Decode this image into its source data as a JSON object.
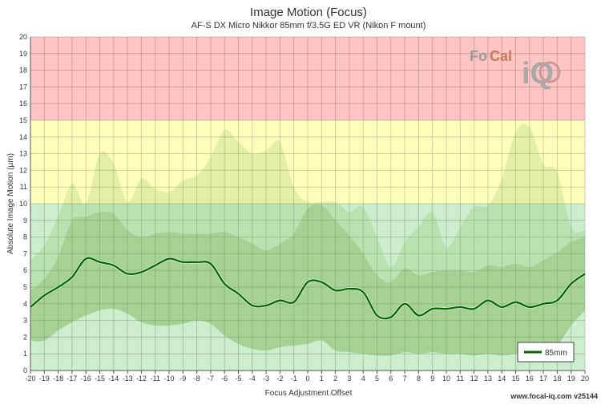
{
  "chart_data": {
    "type": "line",
    "title": "Image Motion (Focus)",
    "subtitle": "AF-S DX Micro Nikkor 85mm f/3.5G ED VR (Nikon F mount)",
    "xlabel": "Focus Adjustment Offset",
    "ylabel": "Absolute Image Motion (μm)",
    "xlim": [
      -20,
      20
    ],
    "ylim": [
      0,
      20
    ],
    "x_ticks": [
      -20,
      -19,
      -18,
      -17,
      -16,
      -15,
      -14,
      -13,
      -12,
      -11,
      -10,
      -9,
      -8,
      -7,
      -6,
      -5,
      -4,
      -3,
      -2,
      -1,
      0,
      1,
      2,
      3,
      4,
      5,
      6,
      7,
      8,
      9,
      10,
      11,
      12,
      13,
      14,
      15,
      16,
      17,
      18,
      19,
      20
    ],
    "y_ticks": [
      0,
      1,
      2,
      3,
      4,
      5,
      6,
      7,
      8,
      9,
      10,
      11,
      12,
      13,
      14,
      15,
      16,
      17,
      18,
      19,
      20
    ],
    "grid": true,
    "zones": [
      {
        "from": 0,
        "to": 10,
        "color": "#cceecc"
      },
      {
        "from": 10,
        "to": 15,
        "color": "#ffffbb"
      },
      {
        "from": 15,
        "to": 20,
        "color": "#ffc4c4"
      }
    ],
    "legend_position": "bottom-right",
    "series": [
      {
        "name": "85mm",
        "color": "#006600",
        "x": [
          -20,
          -19,
          -18,
          -17,
          -16,
          -15,
          -14,
          -13,
          -12,
          -11,
          -10,
          -9,
          -8,
          -7,
          -6,
          -5,
          -4,
          -3,
          -2,
          -1,
          0,
          1,
          2,
          3,
          4,
          5,
          6,
          7,
          8,
          9,
          10,
          11,
          12,
          13,
          14,
          15,
          16,
          17,
          18,
          19,
          20
        ],
        "y": [
          3.8,
          4.5,
          5.0,
          5.6,
          6.7,
          6.5,
          6.3,
          5.8,
          5.9,
          6.3,
          6.7,
          6.5,
          6.5,
          6.4,
          5.2,
          4.6,
          3.9,
          3.9,
          4.2,
          4.1,
          5.3,
          5.3,
          4.8,
          4.9,
          4.7,
          3.3,
          3.2,
          4.0,
          3.3,
          3.7,
          3.7,
          3.8,
          3.7,
          4.2,
          3.8,
          4.1,
          3.8,
          4.0,
          4.2,
          5.2,
          5.8
        ],
        "band_inner_lower": [
          1.8,
          1.8,
          2.4,
          2.9,
          3.3,
          3.6,
          3.7,
          3.4,
          2.9,
          2.7,
          2.7,
          2.8,
          3.0,
          2.8,
          2.1,
          1.6,
          1.3,
          1.2,
          1.4,
          1.5,
          1.6,
          1.8,
          1.2,
          1.1,
          1.0,
          0.9,
          0.9,
          1.1,
          1.0,
          1.1,
          1.0,
          1.0,
          0.9,
          1.0,
          0.9,
          1.0,
          1.0,
          1.1,
          1.5,
          2.7,
          3.6
        ],
        "band_inner_upper": [
          4.8,
          5.5,
          6.8,
          9.0,
          9.2,
          9.5,
          9.4,
          8.4,
          8.0,
          8.2,
          8.3,
          8.2,
          8.2,
          8.2,
          8.3,
          8.0,
          7.6,
          7.2,
          7.6,
          8.2,
          9.7,
          9.9,
          9.0,
          8.1,
          7.0,
          5.7,
          5.3,
          6.1,
          5.7,
          5.9,
          6.0,
          6.0,
          5.9,
          6.3,
          6.2,
          6.4,
          6.2,
          6.6,
          7.1,
          7.7,
          8.0
        ],
        "band_outer_upper": [
          6.6,
          7.5,
          9.2,
          11.2,
          10.0,
          13.0,
          12.4,
          10.1,
          11.5,
          10.9,
          10.7,
          11.4,
          11.7,
          12.8,
          14.4,
          13.7,
          13.0,
          13.2,
          13.7,
          11.0,
          10.1,
          10.1,
          10.1,
          9.5,
          9.8,
          8.0,
          6.2,
          7.7,
          8.6,
          9.5,
          7.4,
          8.6,
          9.8,
          9.9,
          11.5,
          14.3,
          14.6,
          12.4,
          11.9,
          8.6,
          8.4
        ]
      }
    ]
  },
  "footer": "www.focal-iq.com  v25144",
  "logo": {
    "text_left": "Fo",
    "text_mid": "Cal",
    "text_right": "iQ"
  }
}
